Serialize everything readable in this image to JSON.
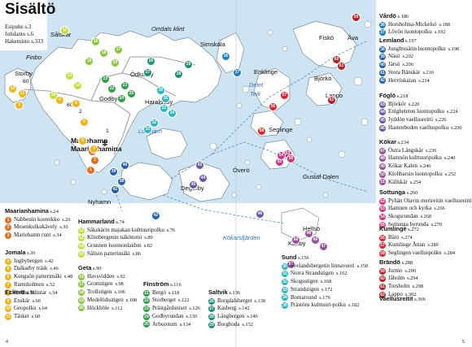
{
  "title": "Sisältö",
  "front_matter": [
    {
      "label": "Esipuhe",
      "page": "s.3"
    },
    {
      "label": "Johdanto",
      "page": "s.6"
    },
    {
      "label": "Hakemisto",
      "page": "s.333"
    }
  ],
  "colors": {
    "water": "#cfe4f3",
    "land": "#ffffff",
    "coast": "#7d8c96",
    "road": "#9aa3a9",
    "ferry": "#4a8fc9",
    "sea_label": "#2d73b7"
  },
  "sections": [
    {
      "key": "mariehamn",
      "title": "Maarianhamina",
      "page": "s.24",
      "color": "#e26f1f",
      "items": [
        {
          "n": "1",
          "label": "Nabbenin kosteikko",
          "page": "s.26"
        },
        {
          "n": "2",
          "label": "Mesenkulkukävely",
          "page": "s.30"
        },
        {
          "n": "3",
          "label": "Mariehamn runt",
          "page": "s.34"
        }
      ]
    },
    {
      "key": "jomala",
      "title": "Jomala",
      "page": "s.36",
      "color": "#f1b21c",
      "items": [
        {
          "n": "4",
          "label": "Ingbybergen",
          "page": "s.42"
        },
        {
          "n": "5",
          "label": "Dalkarby träsk",
          "page": "s.46"
        },
        {
          "n": "6",
          "label": "Kungsön patterimäki",
          "page": "s.48"
        },
        {
          "n": "7",
          "label": "Ramsholmen",
          "page": "s.52"
        },
        {
          "n": "8",
          "label": "Kobba Klintar",
          "page": "s.54"
        }
      ]
    },
    {
      "key": "eckero",
      "title": "Eckerö",
      "page": "s.58",
      "color": "#f1b21c",
      "items": [
        {
          "n": "9",
          "label": "Enskär",
          "page": "s.60"
        },
        {
          "n": "10",
          "label": "Geopolku",
          "page": "s.64"
        },
        {
          "n": "11",
          "label": "Täsket",
          "page": "s.68"
        }
      ]
    },
    {
      "key": "hammarland",
      "title": "Hammarland",
      "page": "s.74",
      "color": "#c7d93a",
      "items": [
        {
          "n": "12",
          "label": "Såkskärin majakan kulttuuripolku",
          "page": "s.76"
        },
        {
          "n": "13",
          "label": "Klintbergenin näkötorni",
          "page": "s.80"
        },
        {
          "n": "14",
          "label": "Grunnen luonnonlaidun",
          "page": "s.82"
        },
        {
          "n": "15",
          "label": "Sålisin patterimäki",
          "page": "s.86"
        }
      ]
    },
    {
      "key": "geta",
      "title": "Geta",
      "page": "s.90",
      "color": "#8bc43f",
      "items": [
        {
          "n": "16",
          "label": "Havsvidden",
          "page": "s.92"
        },
        {
          "n": "17",
          "label": "Grottstigen",
          "page": "s.98"
        },
        {
          "n": "18",
          "label": "Trollstigen",
          "page": "s.106"
        },
        {
          "n": "19",
          "label": "Medeltidsstigen",
          "page": "s.108"
        },
        {
          "n": "20",
          "label": "Höckböle",
          "page": "s.112"
        }
      ]
    },
    {
      "key": "finstrom",
      "title": "Finström",
      "page": "s.116",
      "color": "#2e9e48",
      "items": [
        {
          "n": "21",
          "label": "Bergö",
          "page": "s.118"
        },
        {
          "n": "22",
          "label": "Storberget",
          "page": "s.122"
        },
        {
          "n": "23",
          "label": "Prästgårdsniset",
          "page": "s.126"
        },
        {
          "n": "24",
          "label": "Godbyrundan",
          "page": "s.130"
        },
        {
          "n": "25",
          "label": "Arboretum",
          "page": "s.134"
        }
      ]
    },
    {
      "key": "saltvik",
      "title": "Saltvik",
      "page": "s.136",
      "color": "#1f8f78",
      "items": [
        {
          "n": "26",
          "label": "Borgdalsberget",
          "page": "s.138"
        },
        {
          "n": "27",
          "label": "Kasberg",
          "page": "s.142"
        },
        {
          "n": "28",
          "label": "Långbergen",
          "page": "s.146"
        },
        {
          "n": "29",
          "label": "Borgboda",
          "page": "s.152"
        }
      ]
    },
    {
      "key": "sund",
      "title": "Sund",
      "page": "s.156",
      "color": "#2bb6c4",
      "items": [
        {
          "n": "30",
          "label": "Svelandsbergetin linnavuori",
          "page": "s.158"
        },
        {
          "n": "31",
          "label": "Norra Strandstigen",
          "page": "s.162"
        },
        {
          "n": "32",
          "label": "Skogsstigen",
          "page": "s.168"
        },
        {
          "n": "33",
          "label": "Strandstigen",
          "page": "s.172"
        },
        {
          "n": "34",
          "label": "Bomarsund",
          "page": "s.176"
        },
        {
          "n": "35",
          "label": "Prästöns kulttuuri-polku",
          "page": "s.182"
        }
      ]
    },
    {
      "key": "vardo",
      "title": "Vårdö",
      "page": "s.186",
      "color": "#1f7cc2",
      "items": [
        {
          "n": "36",
          "label": "Horsholma-Mickelsö",
          "page": "s.188"
        },
        {
          "n": "37",
          "label": "Lövön luontopolku",
          "page": "s.192"
        }
      ]
    },
    {
      "key": "lemland",
      "title": "Lemland",
      "page": "s.197",
      "color": "#2561ab",
      "items": [
        {
          "n": "38",
          "label": "Jungfrusärin luontopolku",
          "page": "s.198"
        },
        {
          "n": "39",
          "label": "Näsö",
          "page": "s.202"
        },
        {
          "n": "40",
          "label": "Järsö",
          "page": "s.206"
        },
        {
          "n": "41",
          "label": "Stora Bänskär",
          "page": "s.210"
        },
        {
          "n": "42",
          "label": "Herröskatan",
          "page": "s.214"
        }
      ]
    },
    {
      "key": "foglo",
      "title": "Föglö",
      "page": "s.218",
      "color": "#6a58a4",
      "items": [
        {
          "n": "43",
          "label": "Björkör",
          "page": "s.220"
        },
        {
          "n": "44",
          "label": "Enigheteten luontopolku",
          "page": "s.224"
        },
        {
          "n": "45",
          "label": "Jyddön vaellusreitti",
          "page": "s.226"
        },
        {
          "n": "46",
          "label": "Hastenboden vaelluspolku",
          "page": "s.230"
        }
      ]
    },
    {
      "key": "kokar",
      "title": "Kökar",
      "page": "s.234",
      "color": "#9a4f9d",
      "items": [
        {
          "n": "47",
          "label": "Östra Långskär",
          "page": "s.236"
        },
        {
          "n": "48",
          "label": "Hamnön kulttuuripolku",
          "page": "s.240"
        },
        {
          "n": "49",
          "label": "Kökar Kalen",
          "page": "s.246"
        },
        {
          "n": "50",
          "label": "Klobbarsin luontopolku",
          "page": "s.252"
        },
        {
          "n": "51",
          "label": "Källskär",
          "page": "s.254"
        }
      ]
    },
    {
      "key": "sottunga",
      "title": "Sottunga",
      "page": "s.260",
      "color": "#d2327f",
      "items": [
        {
          "n": "52",
          "label": "Pyhän Olavin merireitin vaellusreitti",
          "page": "s.262"
        },
        {
          "n": "53",
          "label": "Hamnen och kyrka",
          "page": "s.266"
        },
        {
          "n": "54",
          "label": "Skogsrundan",
          "page": "s.268"
        },
        {
          "n": "55",
          "label": "Sottunga byrunda",
          "page": "s.270"
        }
      ]
    },
    {
      "key": "kumlinge",
      "title": "Kumlinge",
      "page": "s.272",
      "color": "#e0262d",
      "items": [
        {
          "n": "56",
          "label": "Båtö",
          "page": "s.274"
        },
        {
          "n": "57",
          "label": "Kumlinge Ättan",
          "page": "s.280"
        },
        {
          "n": "58",
          "label": "Seglingen vaelluspolku",
          "page": "s.284"
        }
      ]
    },
    {
      "key": "brando",
      "title": "Brändö",
      "page": "s.288",
      "color": "#b52026",
      "items": [
        {
          "n": "59",
          "label": "Jurmo",
          "page": "s.290"
        },
        {
          "n": "60",
          "label": "Jåholm",
          "page": "s.294"
        },
        {
          "n": "61",
          "label": "Torsholm",
          "page": "s.298"
        },
        {
          "n": "62",
          "label": "Lappo",
          "page": "s.302"
        }
      ]
    },
    {
      "key": "vaellus",
      "title": "Vaellusreitit",
      "page": "s.306",
      "color": "#111111",
      "items": []
    }
  ],
  "places": [
    {
      "name": "Sålskär",
      "big": false
    },
    {
      "name": "Finbo",
      "big": false,
      "italic": true
    },
    {
      "name": "Orrdals klint",
      "big": false,
      "italic": true
    },
    {
      "name": "Simskäla",
      "big": false
    },
    {
      "name": "Storby",
      "big": false
    },
    {
      "name": "Ödkarby",
      "big": false
    },
    {
      "name": "Godby",
      "big": false
    },
    {
      "name": "Haraldsby",
      "big": false
    },
    {
      "name": "Mariehamn",
      "big": true
    },
    {
      "name": "Maarianhamina",
      "big": true
    },
    {
      "name": "Nyhamn",
      "big": false
    },
    {
      "name": "Degerby",
      "big": false
    },
    {
      "name": "Överö",
      "big": false
    },
    {
      "name": "Enklinge",
      "big": false
    },
    {
      "name": "Seglinge",
      "big": false
    },
    {
      "name": "Fiskö",
      "big": false
    },
    {
      "name": "Åva",
      "big": false
    },
    {
      "name": "Björkö",
      "big": false
    },
    {
      "name": "Lappo",
      "big": false
    },
    {
      "name": "Gustaf Dalen",
      "big": false
    },
    {
      "name": "Hellsö",
      "big": false
    },
    {
      "name": "Karlby",
      "big": false
    }
  ],
  "waters": [
    "Lumparn",
    "Delet",
    "Teili",
    "Kökarsfjärden"
  ],
  "road_numbers": [
    "60",
    "60",
    "2",
    "1"
  ],
  "folios": {
    "left": "4",
    "right": "5"
  }
}
